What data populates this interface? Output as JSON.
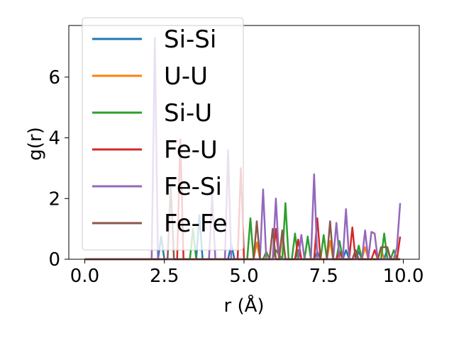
{
  "chart_data": {
    "type": "line",
    "xlabel": "r (Å)",
    "ylabel": "g(r)",
    "xlim": [
      -0.5,
      10.5
    ],
    "ylim": [
      0,
      7.7
    ],
    "x_ticks": [
      "0.0",
      "2.5",
      "5.0",
      "7.5",
      "10.0"
    ],
    "x_tick_values": [
      0,
      2.5,
      5,
      7.5,
      10
    ],
    "y_ticks": [
      "0",
      "2",
      "4",
      "6"
    ],
    "y_tick_values": [
      0,
      2,
      4,
      6
    ],
    "grid": false,
    "legend_position": "upper-left",
    "series": [
      {
        "name": "Si-Si",
        "color": "#1f77b4",
        "x": [
          0,
          2.3,
          2.4,
          2.5,
          3.5,
          3.6,
          3.7,
          4.5,
          4.6,
          4.7,
          6.6,
          6.7,
          6.8,
          7.2,
          7.3,
          7.4,
          8.1,
          8.2,
          8.3,
          8.5,
          8.6,
          8.7,
          9.4,
          9.5,
          9.6,
          9.9
        ],
        "y": [
          0,
          0,
          0.75,
          0,
          0,
          1.45,
          0,
          0,
          0.5,
          0,
          0,
          0.3,
          0,
          0,
          0.25,
          0,
          0,
          0.3,
          0,
          0,
          0.25,
          0,
          0,
          0.35,
          0,
          0
        ]
      },
      {
        "name": "U-U",
        "color": "#ff7f0e",
        "x": [
          0,
          5.3,
          5.4,
          5.5,
          6.1,
          6.2,
          6.3,
          7.6,
          7.7,
          7.8,
          8.7,
          8.8,
          8.9,
          9.2,
          9.3,
          9.4,
          9.9
        ],
        "y": [
          0,
          0,
          0.55,
          0,
          0,
          0.8,
          0,
          0,
          0.6,
          0,
          0,
          0.4,
          0,
          0,
          0.35,
          0,
          0
        ]
      },
      {
        "name": "Si-U",
        "color": "#2ca02c",
        "x": [
          0,
          3.3,
          3.4,
          3.5,
          5.1,
          5.2,
          5.3,
          5.6,
          5.7,
          5.8,
          5.9,
          6.0,
          6.2,
          6.3,
          6.4,
          6.5,
          6.6,
          6.7,
          6.9,
          7.0,
          7.1,
          7.4,
          7.5,
          7.6,
          7.9,
          8.0,
          8.1,
          8.5,
          8.6,
          8.7,
          9.3,
          9.4,
          9.5,
          9.6,
          9.7,
          9.8,
          9.9
        ],
        "y": [
          0,
          0,
          1.0,
          0,
          0,
          1.35,
          0,
          0,
          0.25,
          0,
          0,
          0.3,
          0,
          1.85,
          0,
          0,
          0.85,
          0,
          0,
          0.75,
          0,
          0,
          0.8,
          0,
          0,
          0.6,
          0,
          0,
          0.45,
          0,
          0,
          0.85,
          0,
          0,
          0.3,
          0,
          0
        ]
      },
      {
        "name": "Fe-U",
        "color": "#d62728",
        "x": [
          0,
          2.9,
          3.0,
          3.1,
          4.8,
          4.9,
          5.0,
          5.9,
          6.0,
          6.1,
          6.6,
          6.7,
          6.8,
          7.2,
          7.3,
          7.4,
          7.9,
          8.0,
          8.1,
          8.3,
          8.4,
          8.5,
          9.0,
          9.1,
          9.2,
          9.8,
          9.9
        ],
        "y": [
          0,
          0,
          3.95,
          0,
          0,
          3.0,
          0,
          0,
          1.0,
          0,
          0,
          0.65,
          0,
          0,
          1.35,
          0,
          0,
          0.25,
          0,
          0,
          1.05,
          0,
          0,
          0.3,
          0,
          0,
          0.75
        ]
      },
      {
        "name": "Fe-Si",
        "color": "#9467bd",
        "x": [
          0,
          2.1,
          2.2,
          2.3,
          3.9,
          4.0,
          4.1,
          4.4,
          4.5,
          4.6,
          5.5,
          5.6,
          5.7,
          5.9,
          6.0,
          6.1,
          6.7,
          6.8,
          6.9,
          7.1,
          7.2,
          7.3,
          7.8,
          7.9,
          8.0,
          8.1,
          8.2,
          8.3,
          8.7,
          8.8,
          8.9,
          9.0,
          9.1,
          9.2,
          9.3,
          9.7,
          9.8,
          9.9
        ],
        "y": [
          0,
          0,
          7.3,
          0,
          0,
          2.1,
          0,
          0,
          3.6,
          0,
          0,
          2.3,
          0,
          0,
          2.0,
          0,
          0,
          0.8,
          0,
          0,
          2.8,
          0,
          0,
          1.2,
          0,
          0,
          1.65,
          0,
          0,
          0.95,
          0,
          0.9,
          0.85,
          0,
          0,
          0,
          0.4,
          1.85
        ]
      },
      {
        "name": "Fe-Fe",
        "color": "#8c564b",
        "x": [
          0,
          2.6,
          2.7,
          2.8,
          5.3,
          5.4,
          5.5,
          5.8,
          5.9,
          6.0,
          6.1,
          6.2,
          6.3,
          7.6,
          7.7,
          7.8,
          8.4,
          8.5,
          8.6,
          9.2,
          9.3,
          9.4,
          9.5,
          9.6,
          9.9
        ],
        "y": [
          0,
          0,
          2.45,
          0,
          0,
          1.25,
          0,
          0,
          1.0,
          0,
          0,
          0.95,
          0,
          0,
          1.25,
          0,
          0,
          0.3,
          0,
          0,
          0.4,
          0.4,
          0.4,
          0,
          0
        ]
      }
    ]
  }
}
